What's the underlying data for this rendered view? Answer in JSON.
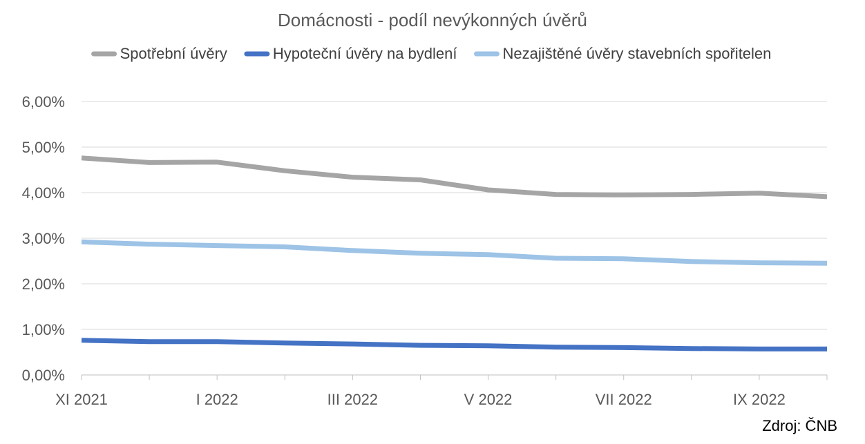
{
  "chart_data": {
    "type": "line",
    "title": "Domácnosti - podíl nevýkonných úvěrů",
    "categories": [
      "XI 2021",
      "XII 2021",
      "I 2022",
      "II 2022",
      "III 2022",
      "IV 2022",
      "V 2022",
      "VI 2022",
      "VII 2022",
      "VIII 2022",
      "IX 2022",
      "X 2022"
    ],
    "x_tick_labels": [
      "XI 2021",
      "I 2022",
      "III 2022",
      "V 2022",
      "VII 2022",
      "IX 2022"
    ],
    "y_tick_labels": [
      "0,00%",
      "1,00%",
      "2,00%",
      "3,00%",
      "4,00%",
      "5,00%",
      "6,00%"
    ],
    "ylim": [
      0,
      6
    ],
    "grid": true,
    "legend_position": "top",
    "series": [
      {
        "name": "Spotřební úvěry",
        "color": "#A5A5A5",
        "values": [
          4.76,
          4.66,
          4.67,
          4.48,
          4.34,
          4.28,
          4.06,
          3.96,
          3.95,
          3.96,
          3.99,
          3.91
        ]
      },
      {
        "name": "Hypoteční úvěry na bydlení",
        "color": "#4472C4",
        "values": [
          0.76,
          0.73,
          0.73,
          0.7,
          0.68,
          0.65,
          0.64,
          0.61,
          0.6,
          0.58,
          0.57,
          0.57
        ]
      },
      {
        "name": "Nezajištěné úvěry stavebních spořitelen",
        "color": "#9DC3E6",
        "values": [
          2.92,
          2.87,
          2.84,
          2.81,
          2.73,
          2.67,
          2.64,
          2.56,
          2.55,
          2.49,
          2.46,
          2.45
        ]
      }
    ],
    "source": "Zdroj: ČNB"
  }
}
